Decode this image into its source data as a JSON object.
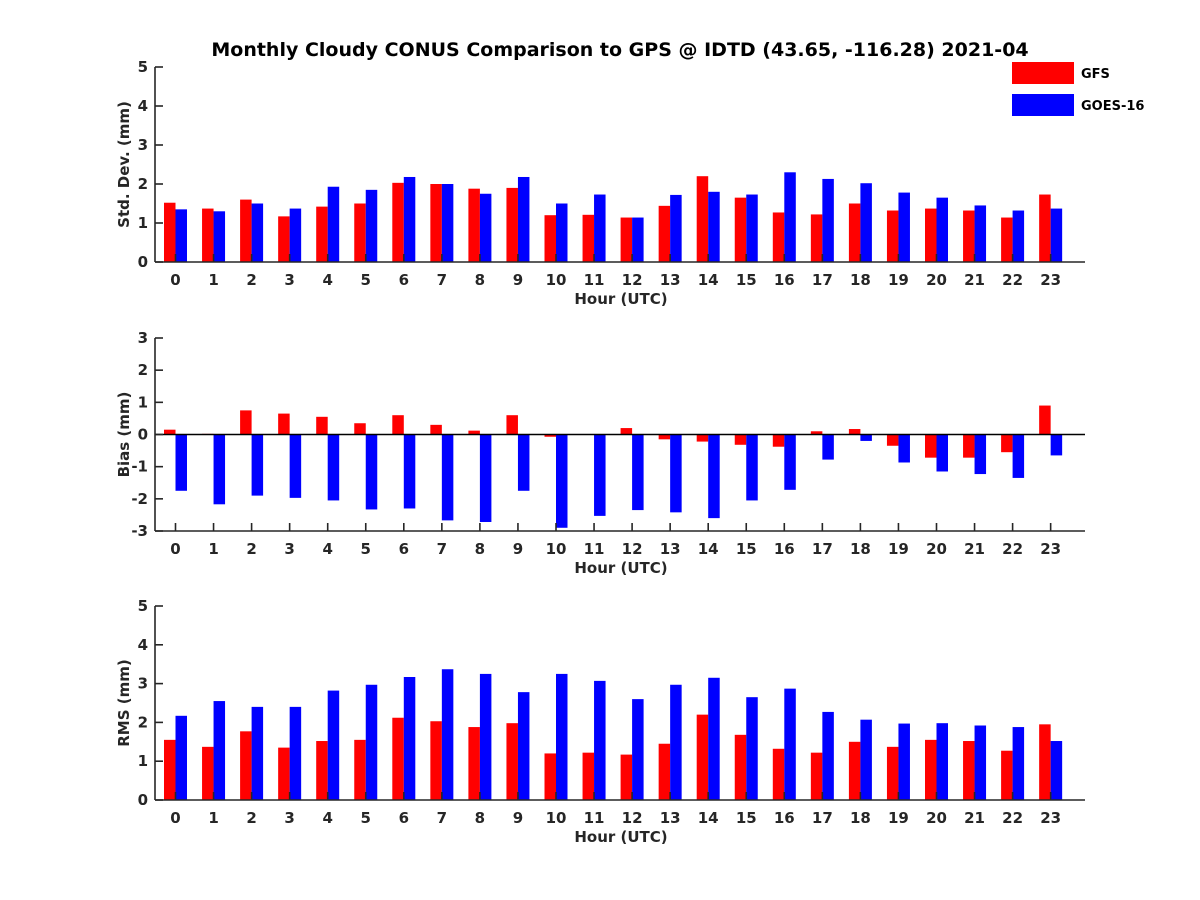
{
  "chart_data": {
    "type": "bar",
    "title": "Monthly Cloudy CONUS Comparison to GPS @ IDTD (43.65, -116.28) 2021-04",
    "categories": [
      "0",
      "1",
      "2",
      "3",
      "4",
      "5",
      "6",
      "7",
      "8",
      "9",
      "10",
      "11",
      "12",
      "13",
      "14",
      "15",
      "16",
      "17",
      "18",
      "19",
      "20",
      "21",
      "22",
      "23"
    ],
    "legend": {
      "placement": "top-right",
      "entries": [
        {
          "name": "GFS",
          "color": "#ff0000"
        },
        {
          "name": "GOES-16",
          "color": "#0000ff"
        }
      ]
    },
    "panels": [
      {
        "ylabel": "Std. Dev. (mm)",
        "xlabel": "Hour (UTC)",
        "ylim": [
          0,
          5
        ],
        "yticks": [
          "0",
          "1",
          "2",
          "3",
          "4",
          "5"
        ],
        "series": [
          {
            "name": "GFS",
            "values": [
              1.52,
              1.37,
              1.6,
              1.17,
              1.42,
              1.5,
              2.03,
              2.0,
              1.88,
              1.9,
              1.2,
              1.21,
              1.14,
              1.44,
              2.2,
              1.65,
              1.27,
              1.22,
              1.5,
              1.32,
              1.37,
              1.32,
              1.14,
              1.73
            ]
          },
          {
            "name": "GOES-16",
            "values": [
              1.35,
              1.3,
              1.5,
              1.37,
              1.93,
              1.85,
              2.18,
              2.0,
              1.75,
              2.18,
              1.5,
              1.73,
              1.14,
              1.72,
              1.8,
              1.73,
              2.3,
              2.13,
              2.02,
              1.78,
              1.65,
              1.45,
              1.32,
              1.37
            ]
          }
        ]
      },
      {
        "ylabel": "Bias (mm)",
        "xlabel": "Hour (UTC)",
        "ylim": [
          -3,
          3
        ],
        "yticks": [
          "-3",
          "-2",
          "-1",
          "0",
          "1",
          "2",
          "3"
        ],
        "series": [
          {
            "name": "GFS",
            "values": [
              0.15,
              0.02,
              0.75,
              0.65,
              0.55,
              0.35,
              0.6,
              0.3,
              0.12,
              0.6,
              -0.07,
              0.0,
              0.2,
              -0.15,
              -0.22,
              -0.32,
              -0.38,
              0.1,
              0.17,
              -0.35,
              -0.72,
              -0.72,
              -0.55,
              0.9
            ]
          },
          {
            "name": "GOES-16",
            "values": [
              -1.75,
              -2.17,
              -1.9,
              -1.97,
              -2.05,
              -2.33,
              -2.3,
              -2.67,
              -2.72,
              -1.75,
              -2.9,
              -2.53,
              -2.35,
              -2.42,
              -2.6,
              -2.05,
              -1.72,
              -0.78,
              -0.2,
              -0.87,
              -1.15,
              -1.23,
              -1.35,
              -0.65
            ]
          }
        ]
      },
      {
        "ylabel": "RMS (mm)",
        "xlabel": "Hour (UTC)",
        "ylim": [
          0,
          5
        ],
        "yticks": [
          "0",
          "1",
          "2",
          "3",
          "4",
          "5"
        ],
        "series": [
          {
            "name": "GFS",
            "values": [
              1.55,
              1.37,
              1.77,
              1.35,
              1.52,
              1.55,
              2.12,
              2.03,
              1.88,
              1.98,
              1.2,
              1.22,
              1.17,
              1.45,
              2.2,
              1.68,
              1.32,
              1.22,
              1.5,
              1.37,
              1.55,
              1.52,
              1.27,
              1.95
            ]
          },
          {
            "name": "GOES-16",
            "values": [
              2.17,
              2.55,
              2.4,
              2.4,
              2.82,
              2.97,
              3.17,
              3.37,
              3.25,
              2.78,
              3.25,
              3.07,
              2.6,
              2.97,
              3.15,
              2.65,
              2.87,
              2.27,
              2.07,
              1.97,
              1.98,
              1.92,
              1.88,
              1.52
            ]
          }
        ]
      }
    ]
  }
}
